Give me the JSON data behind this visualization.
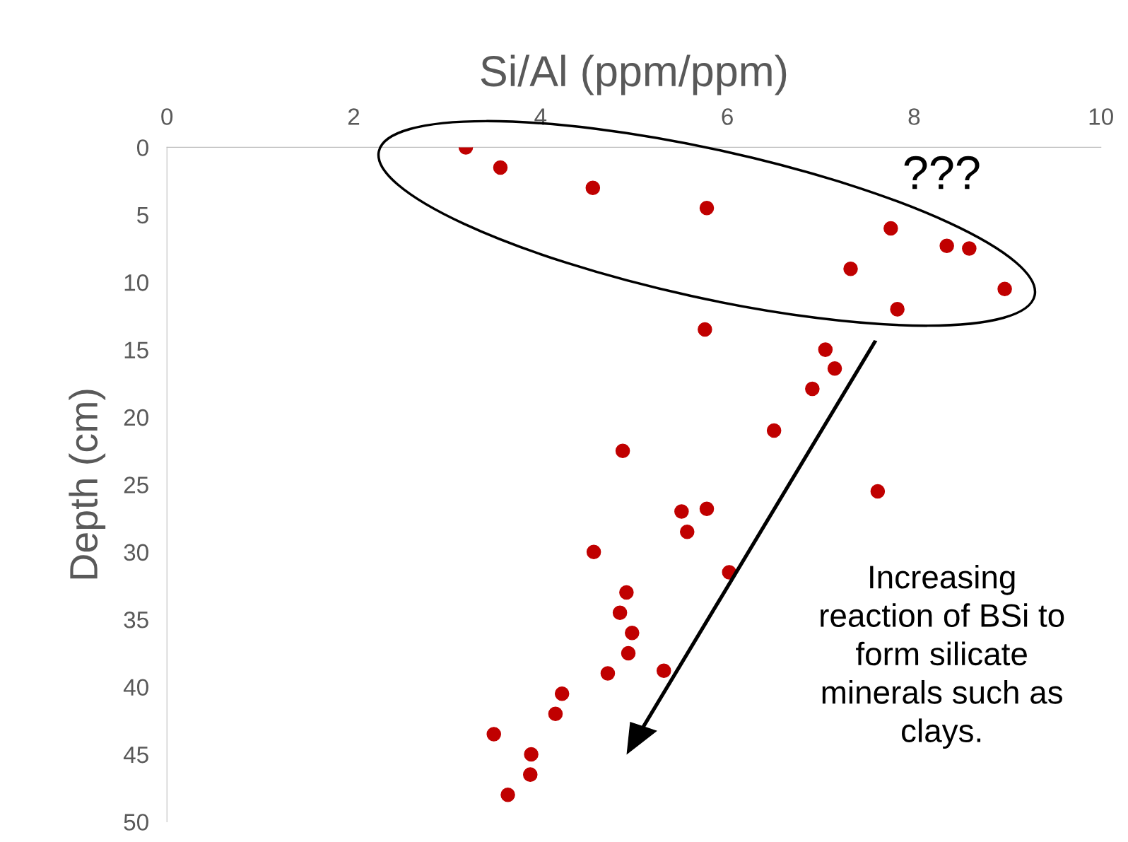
{
  "chart_data": {
    "type": "scatter",
    "xlabel": "Si/Al (ppm/ppm)",
    "ylabel": "Depth (cm)",
    "x": [
      3.2,
      3.57,
      4.56,
      5.78,
      7.75,
      8.35,
      8.59,
      7.32,
      8.97,
      7.82,
      5.76,
      7.05,
      7.15,
      6.91,
      6.5,
      4.88,
      7.61,
      5.51,
      5.78,
      5.57,
      4.57,
      6.02,
      4.92,
      4.85,
      4.98,
      4.94,
      4.72,
      5.32,
      4.23,
      4.16,
      3.5,
      3.9,
      3.89,
      3.65
    ],
    "series": [
      {
        "color": "#c00000",
        "values": [
          0,
          1.5,
          3.0,
          4.5,
          6.0,
          7.3,
          7.5,
          9.0,
          10.5,
          12.0,
          13.5,
          15.0,
          16.4,
          17.9,
          21.0,
          22.5,
          25.5,
          27.0,
          26.8,
          28.5,
          30.0,
          31.5,
          33.0,
          34.5,
          36.0,
          37.5,
          39.0,
          38.8,
          40.5,
          42.0,
          43.5,
          45.0,
          46.5,
          48.0
        ]
      }
    ],
    "xlim": [
      0,
      10
    ],
    "xticks": [
      0,
      2,
      4,
      6,
      8,
      10
    ],
    "ylim": [
      50,
      0
    ],
    "yticks": [
      0,
      5,
      10,
      15,
      20,
      25,
      30,
      35,
      40,
      45,
      50
    ],
    "marker": "circle",
    "grid": false,
    "legend": false,
    "annotations": [
      "???",
      "Increasing\nreaction of BSi to\nform silicate\nminerals such as\nclays."
    ]
  }
}
